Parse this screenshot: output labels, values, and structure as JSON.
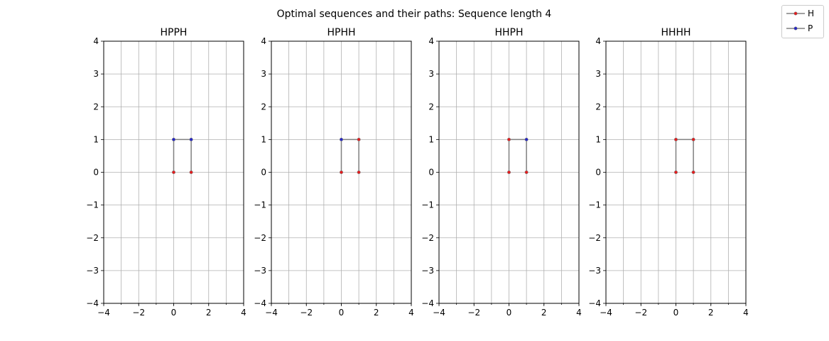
{
  "figure": {
    "suptitle": "Optimal sequences and their paths: Sequence length 4"
  },
  "legend": {
    "placement": "top-right",
    "items": [
      {
        "label": "H",
        "color": "#e41a1c"
      },
      {
        "label": "P",
        "color": "#2323c8"
      }
    ]
  },
  "colors": {
    "path_line": "#808080",
    "grid": "#b0b0b0",
    "H": "#e41a1c",
    "P": "#2323c8"
  },
  "chart_data": [
    {
      "type": "line",
      "title": "HPPH",
      "sequence": [
        "H",
        "P",
        "P",
        "H"
      ],
      "x": [
        0,
        0,
        1,
        1
      ],
      "y": [
        0,
        1,
        1,
        0
      ],
      "xlim": [
        -4,
        4
      ],
      "ylim": [
        -4,
        4
      ],
      "xticks": [
        -4,
        -2,
        0,
        2,
        4
      ],
      "yticks": [
        -4,
        -3,
        -2,
        -1,
        0,
        1,
        2,
        3,
        4
      ],
      "grid": true
    },
    {
      "type": "line",
      "title": "HPHH",
      "sequence": [
        "H",
        "P",
        "H",
        "H"
      ],
      "x": [
        0,
        0,
        1,
        1
      ],
      "y": [
        0,
        1,
        1,
        0
      ],
      "xlim": [
        -4,
        4
      ],
      "ylim": [
        -4,
        4
      ],
      "xticks": [
        -4,
        -2,
        0,
        2,
        4
      ],
      "yticks": [
        -4,
        -3,
        -2,
        -1,
        0,
        1,
        2,
        3,
        4
      ],
      "grid": true
    },
    {
      "type": "line",
      "title": "HHPH",
      "sequence": [
        "H",
        "H",
        "P",
        "H"
      ],
      "x": [
        0,
        0,
        1,
        1
      ],
      "y": [
        0,
        1,
        1,
        0
      ],
      "xlim": [
        -4,
        4
      ],
      "ylim": [
        -4,
        4
      ],
      "xticks": [
        -4,
        -2,
        0,
        2,
        4
      ],
      "yticks": [
        -4,
        -3,
        -2,
        -1,
        0,
        1,
        2,
        3,
        4
      ],
      "grid": true
    },
    {
      "type": "line",
      "title": "HHHH",
      "sequence": [
        "H",
        "H",
        "H",
        "H"
      ],
      "x": [
        0,
        0,
        1,
        1
      ],
      "y": [
        0,
        1,
        1,
        0
      ],
      "xlim": [
        -4,
        4
      ],
      "ylim": [
        -4,
        4
      ],
      "xticks": [
        -4,
        -2,
        0,
        2,
        4
      ],
      "yticks": [
        -4,
        -3,
        -2,
        -1,
        0,
        1,
        2,
        3,
        4
      ],
      "grid": true
    }
  ]
}
